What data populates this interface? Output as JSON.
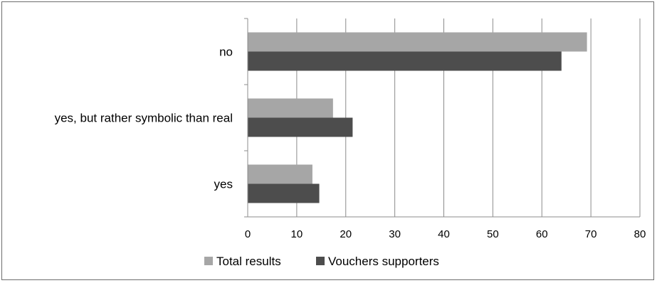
{
  "chart_data": {
    "type": "bar",
    "orientation": "horizontal",
    "categories": [
      "no",
      "yes, but rather symbolic than real",
      "yes"
    ],
    "series": [
      {
        "name": "Total results",
        "values": [
          69.2,
          17.4,
          13.2
        ],
        "color": "#a6a6a6"
      },
      {
        "name": "Vouchers supporters",
        "values": [
          64.0,
          21.4,
          14.6
        ],
        "color": "#4d4d4d"
      }
    ],
    "xlim": [
      0,
      80
    ],
    "xticks": [
      0,
      10,
      20,
      30,
      40,
      50,
      60,
      70,
      80
    ],
    "grid": true,
    "legend_position": "bottom"
  }
}
